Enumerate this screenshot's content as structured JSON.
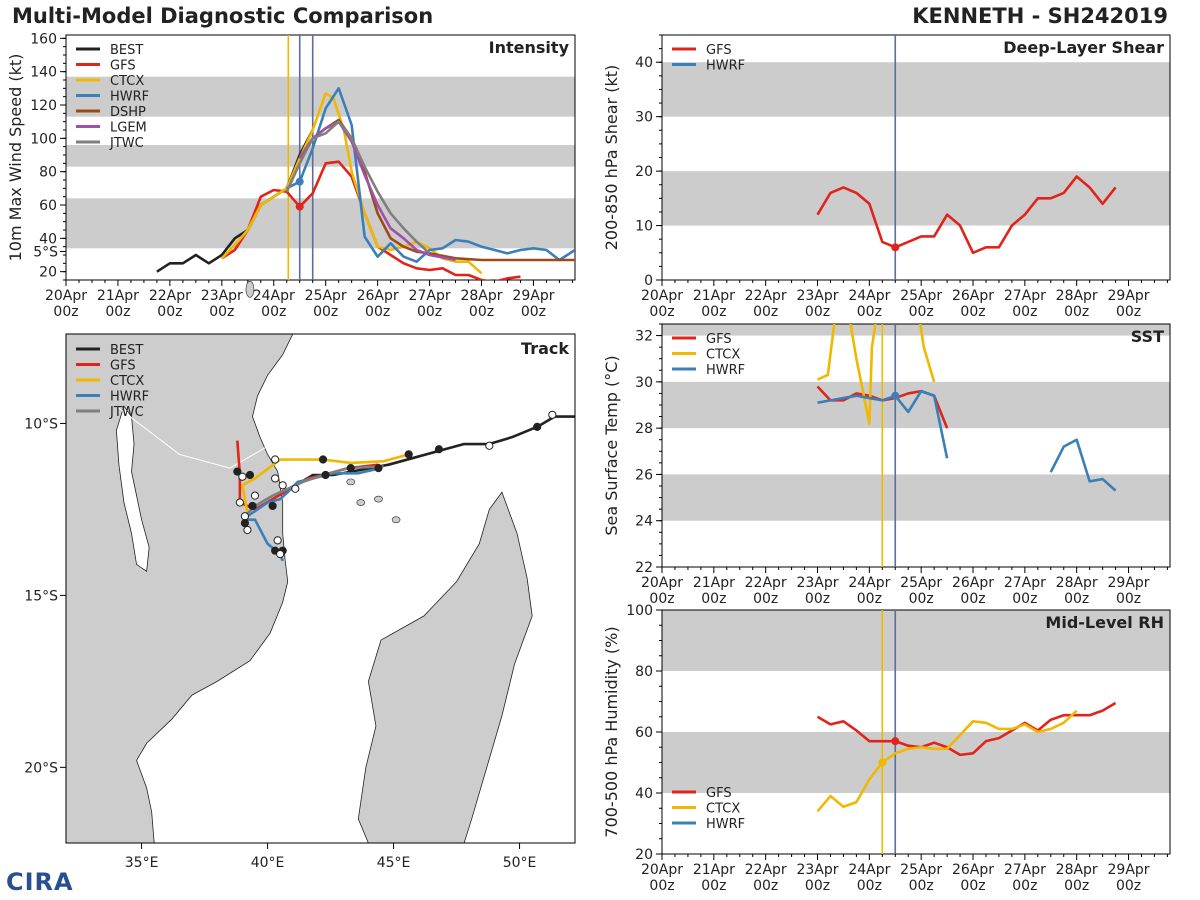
{
  "header": {
    "left_title": "Multi-Model Diagnostic Comparison",
    "right_title": "KENNETH - SH242019"
  },
  "logo_text": "CIRA",
  "colors": {
    "BEST": "#222222",
    "GFS": "#e0241b",
    "CTCX": "#f0b800",
    "HWRF": "#3a7fb8",
    "DSHP": "#9b4a1a",
    "LGEM": "#a050a8",
    "JTWC": "#7f7f7f",
    "band": "#cccccc",
    "ctcx_init": "#f0b800",
    "current": "#5a6f99"
  },
  "time_ticks": {
    "days": [
      "20Apr",
      "21Apr",
      "22Apr",
      "23Apr",
      "24Apr",
      "25Apr",
      "26Apr",
      "27Apr",
      "28Apr",
      "29Apr"
    ],
    "hour": "00z"
  },
  "chart_data": [
    {
      "id": "intensity",
      "type": "line",
      "title": "Intensity",
      "ylabel": "10m Max Wind Speed (kt)",
      "xlim": [
        0,
        9.8
      ],
      "ylim": [
        15,
        162
      ],
      "yticks": [
        20,
        40,
        60,
        80,
        100,
        120,
        140,
        160
      ],
      "bands": [
        [
          34,
          64
        ],
        [
          83,
          96
        ],
        [
          113,
          137
        ]
      ],
      "vlines": [
        {
          "x": 4.28,
          "color": "ctcx_init"
        },
        {
          "x": 4.5,
          "color": "current"
        },
        {
          "x": 4.75,
          "color": "current"
        }
      ],
      "legend": [
        "BEST",
        "GFS",
        "CTCX",
        "HWRF",
        "DSHP",
        "LGEM",
        "JTWC"
      ],
      "series": [
        {
          "name": "BEST",
          "x": [
            1.75,
            2.0,
            2.25,
            2.5,
            2.75,
            3.0,
            3.25,
            3.5,
            3.75,
            4.0,
            4.25,
            4.5,
            4.75
          ],
          "y": [
            20,
            25,
            25,
            30,
            25,
            30,
            40,
            45,
            60,
            65,
            70,
            90,
            105
          ]
        },
        {
          "name": "GFS",
          "x": [
            3.0,
            3.25,
            3.5,
            3.75,
            4.0,
            4.25,
            4.5,
            4.75,
            5.0,
            5.25,
            5.5,
            5.75,
            6.0,
            6.25,
            6.5,
            6.75,
            7.0,
            7.25,
            7.5,
            7.75,
            8.0,
            8.25,
            8.5,
            8.75
          ],
          "y": [
            28,
            33,
            45,
            65,
            69,
            68,
            59,
            67,
            85,
            86,
            77,
            55,
            35,
            30,
            25,
            22,
            21,
            22,
            18,
            18,
            15,
            14,
            16,
            17
          ]
        },
        {
          "name": "CTCX",
          "x": [
            3.0,
            3.25,
            3.5,
            3.75,
            4.0,
            4.25,
            4.5,
            4.75,
            5.0,
            5.15,
            5.35,
            5.5,
            5.75,
            6.0,
            6.25,
            6.5,
            6.75,
            7.0,
            7.25,
            7.5,
            7.75,
            8.0
          ],
          "y": [
            28,
            36,
            45,
            60,
            65,
            70,
            88,
            105,
            127,
            124,
            105,
            80,
            55,
            35,
            33,
            35,
            38,
            34,
            28,
            26,
            26,
            19
          ]
        },
        {
          "name": "HWRF",
          "x": [
            4.25,
            4.5,
            4.75,
            5.0,
            5.25,
            5.5,
            5.75,
            6.0,
            6.25,
            6.5,
            6.75,
            7.0,
            7.25,
            7.5,
            7.75,
            8.0,
            8.25,
            8.5,
            8.75,
            9.0,
            9.25,
            9.5,
            9.8
          ],
          "y": [
            70,
            74,
            94,
            118,
            130,
            108,
            41,
            29,
            37,
            29,
            26,
            33,
            34,
            39,
            38,
            35,
            33,
            31,
            33,
            34,
            33,
            27,
            33
          ]
        },
        {
          "name": "DSHP",
          "x": [
            4.5,
            4.75,
            5.0,
            5.25,
            5.5,
            5.75,
            6.0,
            6.25,
            6.5,
            6.75,
            7.0,
            7.5,
            8.0,
            8.5,
            9.0,
            9.8
          ],
          "y": [
            88,
            100,
            106,
            111,
            100,
            80,
            55,
            40,
            35,
            32,
            31,
            28,
            27,
            27,
            27,
            27
          ]
        },
        {
          "name": "LGEM",
          "x": [
            4.5,
            4.75,
            5.0,
            5.25,
            5.5,
            5.75,
            6.0,
            6.25,
            6.5,
            6.75,
            7.0,
            7.5
          ],
          "y": [
            88,
            100,
            106,
            110,
            98,
            78,
            60,
            46,
            40,
            33,
            30,
            27
          ]
        },
        {
          "name": "JTWC",
          "x": [
            4.25,
            4.5,
            4.75,
            5.0,
            5.25,
            5.5,
            5.75,
            6.0,
            6.25,
            6.5,
            6.75,
            7.0
          ],
          "y": [
            68,
            85,
            100,
            103,
            110,
            100,
            83,
            68,
            55,
            46,
            38,
            31
          ]
        }
      ],
      "markers": [
        {
          "series": "GFS",
          "x": 4.5,
          "y": 59
        },
        {
          "series": "HWRF",
          "x": 4.5,
          "y": 74
        }
      ]
    },
    {
      "id": "shear",
      "type": "line",
      "title": "Deep-Layer Shear",
      "ylabel": "200-850 hPa Shear (kt)",
      "xlim": [
        0,
        9.8
      ],
      "ylim": [
        0,
        45
      ],
      "yticks": [
        0,
        10,
        20,
        30,
        40
      ],
      "bands": [
        [
          10,
          20
        ],
        [
          30,
          40
        ]
      ],
      "vlines": [
        {
          "x": 4.5,
          "color": "current"
        }
      ],
      "legend": [
        "GFS",
        "HWRF"
      ],
      "series": [
        {
          "name": "GFS",
          "x": [
            3.0,
            3.25,
            3.5,
            3.75,
            4.0,
            4.25,
            4.5,
            4.75,
            5.0,
            5.25,
            5.5,
            5.75,
            6.0,
            6.25,
            6.5,
            6.75,
            7.0,
            7.25,
            7.5,
            7.75,
            8.0,
            8.25,
            8.5,
            8.75
          ],
          "y": [
            12,
            16,
            17,
            16,
            14,
            7,
            6,
            7,
            8,
            8,
            12,
            10,
            5,
            6,
            6,
            10,
            12,
            15,
            15,
            16,
            19,
            17,
            14,
            17
          ]
        }
      ],
      "markers": [
        {
          "series": "GFS",
          "x": 4.5,
          "y": 6
        }
      ]
    },
    {
      "id": "sst",
      "type": "line",
      "title": "SST",
      "ylabel": "Sea Surface Temp (°C)",
      "xlim": [
        0,
        9.8
      ],
      "ylim": [
        22,
        32.5
      ],
      "yticks": [
        22,
        24,
        26,
        28,
        30,
        32
      ],
      "bands": [
        [
          24,
          26
        ],
        [
          28,
          30
        ],
        [
          32,
          33
        ]
      ],
      "vlines": [
        {
          "x": 4.25,
          "color": "ctcx_init"
        },
        {
          "x": 4.5,
          "color": "current"
        }
      ],
      "legend": [
        "GFS",
        "CTCX",
        "HWRF"
      ],
      "series": [
        {
          "name": "GFS",
          "x": [
            3.0,
            3.25,
            3.5,
            3.75,
            4.0,
            4.25,
            4.5,
            4.75,
            5.0,
            5.25,
            5.5
          ],
          "y": [
            29.8,
            29.2,
            29.2,
            29.5,
            29.4,
            29.2,
            29.3,
            29.5,
            29.6,
            29.4,
            28.0
          ]
        },
        {
          "name": "CTCX",
          "x": [
            3.0,
            3.2,
            3.35,
            3.6,
            3.75,
            4.0,
            4.05,
            4.15,
            4.2,
            4.25
          ],
          "y": [
            30.1,
            30.3,
            33.0,
            33.0,
            31.0,
            28.2,
            31.5,
            33.0,
            33.0,
            33.0
          ]
        },
        {
          "name": "CTCX",
          "x": [
            4.95,
            5.05,
            5.25
          ],
          "y": [
            33.0,
            31.5,
            30.0
          ]
        },
        {
          "name": "HWRF",
          "x": [
            3.0,
            3.25,
            3.5,
            3.75,
            4.0,
            4.25,
            4.5,
            4.75,
            5.0,
            5.25,
            5.5
          ],
          "y": [
            29.1,
            29.2,
            29.3,
            29.4,
            29.3,
            29.2,
            29.4,
            28.7,
            29.6,
            29.4,
            26.7
          ]
        },
        {
          "name": "HWRF",
          "x": [
            7.5,
            7.75,
            8.0,
            8.25,
            8.5,
            8.75
          ],
          "y": [
            26.1,
            27.2,
            27.5,
            25.7,
            25.8,
            25.3
          ]
        }
      ],
      "markers": [
        {
          "series": "HWRF",
          "x": 4.5,
          "y": 29.4
        }
      ]
    },
    {
      "id": "rh",
      "type": "line",
      "title": "Mid-Level RH",
      "ylabel": "700-500 hPa Humidity (%)",
      "xlim": [
        0,
        9.8
      ],
      "ylim": [
        20,
        100
      ],
      "yticks": [
        20,
        40,
        60,
        80,
        100
      ],
      "bands": [
        [
          40,
          60
        ],
        [
          80,
          100
        ]
      ],
      "vlines": [
        {
          "x": 4.25,
          "color": "ctcx_init"
        },
        {
          "x": 4.5,
          "color": "current"
        }
      ],
      "legend": [
        "GFS",
        "CTCX",
        "HWRF"
      ],
      "series": [
        {
          "name": "GFS",
          "x": [
            3.0,
            3.25,
            3.5,
            3.75,
            4.0,
            4.25,
            4.5,
            4.75,
            5.0,
            5.25,
            5.5,
            5.75,
            6.0,
            6.25,
            6.5,
            6.75,
            7.0,
            7.25,
            7.5,
            7.75,
            8.0,
            8.25,
            8.5,
            8.75
          ],
          "y": [
            65,
            62.5,
            63.5,
            60.5,
            57,
            57,
            57,
            55.5,
            55,
            56.5,
            55,
            52.5,
            53,
            57,
            58,
            60.5,
            63,
            60.5,
            64,
            65.5,
            65.5,
            65.5,
            67,
            69.5
          ]
        },
        {
          "name": "CTCX",
          "x": [
            3.0,
            3.25,
            3.5,
            3.75,
            4.0,
            4.25,
            4.5,
            4.75,
            5.0,
            5.25,
            5.5,
            5.75,
            6.0,
            6.25,
            6.5,
            6.75,
            7.0,
            7.25,
            7.5,
            7.75,
            8.0
          ],
          "y": [
            34,
            39,
            35.5,
            37,
            44.5,
            50,
            53,
            54.5,
            55,
            54.5,
            54.5,
            59,
            63.5,
            63,
            61,
            61,
            62.5,
            60,
            61,
            63,
            67
          ]
        }
      ],
      "markers": [
        {
          "series": "GFS",
          "x": 4.5,
          "y": 57
        },
        {
          "series": "CTCX",
          "x": 4.25,
          "y": 50
        }
      ]
    },
    {
      "id": "track",
      "type": "line",
      "title": "Track",
      "xlim": [
        32,
        52.2
      ],
      "ylim": [
        -22.2,
        -7.4
      ],
      "xticks": [
        {
          "v": 35,
          "label": "35°E"
        },
        {
          "v": 40,
          "label": "40°E"
        },
        {
          "v": 45,
          "label": "45°E"
        },
        {
          "v": 50,
          "label": "50°E"
        }
      ],
      "yticks": [
        {
          "v": -10,
          "label": "10°S"
        },
        {
          "v": -15,
          "label": "15°S"
        },
        {
          "v": -20,
          "label": "20°S"
        },
        {
          "v": -5,
          "label": "5°S"
        }
      ],
      "legend": [
        "BEST",
        "GFS",
        "CTCX",
        "HWRF",
        "JTWC"
      ],
      "series": [
        {
          "name": "BEST",
          "lon": [
            52.2,
            51.4,
            50.7,
            49.7,
            48.8,
            47.8,
            46.8,
            45.8,
            44.8,
            43.7,
            42.6,
            41.8,
            41.1
          ],
          "lat": [
            -9.8,
            -9.8,
            -10.1,
            -10.4,
            -10.6,
            -10.6,
            -10.8,
            -11.0,
            -11.2,
            -11.35,
            -11.5,
            -11.5,
            -11.8
          ]
        },
        {
          "name": "GFS",
          "lon": [
            44.4,
            43.2,
            42.2,
            41.6,
            40.9,
            40.2,
            39.5,
            38.9,
            38.9,
            38.8
          ],
          "lat": [
            -11.2,
            -11.3,
            -11.5,
            -11.6,
            -11.9,
            -12.2,
            -12.5,
            -12.3,
            -11.5,
            -10.5
          ]
        },
        {
          "name": "CTCX",
          "lon": [
            45.6,
            44.6,
            43.3,
            42.2,
            41.0,
            40.5,
            39.5,
            39.0,
            39.2
          ],
          "lat": [
            -10.9,
            -11.1,
            -11.15,
            -11.05,
            -11.05,
            -11.05,
            -11.6,
            -11.8,
            -12.6
          ]
        },
        {
          "name": "HWRF",
          "lon": [
            44.5,
            43.6,
            42.6,
            41.8,
            41.2,
            40.8,
            40.5,
            40.0,
            39.6,
            39.2,
            39.1,
            39.5,
            40.0,
            40.5,
            40.6
          ],
          "lat": [
            -11.3,
            -11.45,
            -11.45,
            -11.6,
            -11.7,
            -12.0,
            -12.2,
            -12.3,
            -12.5,
            -12.7,
            -12.8,
            -12.8,
            -13.5,
            -13.8,
            -14.0
          ]
        },
        {
          "name": "JTWC",
          "lon": [
            44.6,
            43.2,
            42.2,
            41.4,
            40.8,
            40.2,
            39.5,
            39.1
          ],
          "lat": [
            -11.25,
            -11.3,
            -11.5,
            -11.7,
            -11.9,
            -12.1,
            -12.4,
            -12.7
          ]
        }
      ],
      "points": [
        {
          "lon": 51.3,
          "lat": -9.75,
          "filled": false
        },
        {
          "lon": 50.7,
          "lat": -10.1,
          "filled": true
        },
        {
          "lon": 48.8,
          "lat": -10.65,
          "filled": false
        },
        {
          "lon": 46.8,
          "lat": -10.75,
          "filled": true
        },
        {
          "lon": 45.6,
          "lat": -10.9,
          "filled": true
        },
        {
          "lon": 44.4,
          "lat": -11.3,
          "filled": true
        },
        {
          "lon": 43.3,
          "lat": -11.3,
          "filled": true
        },
        {
          "lon": 42.2,
          "lat": -11.05,
          "filled": true
        },
        {
          "lon": 42.3,
          "lat": -11.5,
          "filled": true
        },
        {
          "lon": 41.1,
          "lat": -11.9,
          "filled": false
        },
        {
          "lon": 40.3,
          "lat": -11.05,
          "filled": false
        },
        {
          "lon": 40.3,
          "lat": -11.6,
          "filled": false
        },
        {
          "lon": 40.6,
          "lat": -11.8,
          "filled": false
        },
        {
          "lon": 39.3,
          "lat": -11.5,
          "filled": true
        },
        {
          "lon": 38.8,
          "lat": -11.4,
          "filled": true
        },
        {
          "lon": 39.0,
          "lat": -11.55,
          "filled": false
        },
        {
          "lon": 39.5,
          "lat": -12.1,
          "filled": false
        },
        {
          "lon": 38.9,
          "lat": -12.3,
          "filled": false
        },
        {
          "lon": 39.4,
          "lat": -12.4,
          "filled": true
        },
        {
          "lon": 39.1,
          "lat": -12.7,
          "filled": false
        },
        {
          "lon": 39.1,
          "lat": -12.9,
          "filled": true
        },
        {
          "lon": 39.2,
          "lat": -13.1,
          "filled": false
        },
        {
          "lon": 40.2,
          "lat": -12.4,
          "filled": true
        },
        {
          "lon": 40.4,
          "lat": -13.4,
          "filled": false
        },
        {
          "lon": 40.3,
          "lat": -13.7,
          "filled": true
        },
        {
          "lon": 40.6,
          "lat": -13.7,
          "filled": true
        },
        {
          "lon": 40.5,
          "lat": -13.8,
          "filled": false
        }
      ]
    }
  ]
}
